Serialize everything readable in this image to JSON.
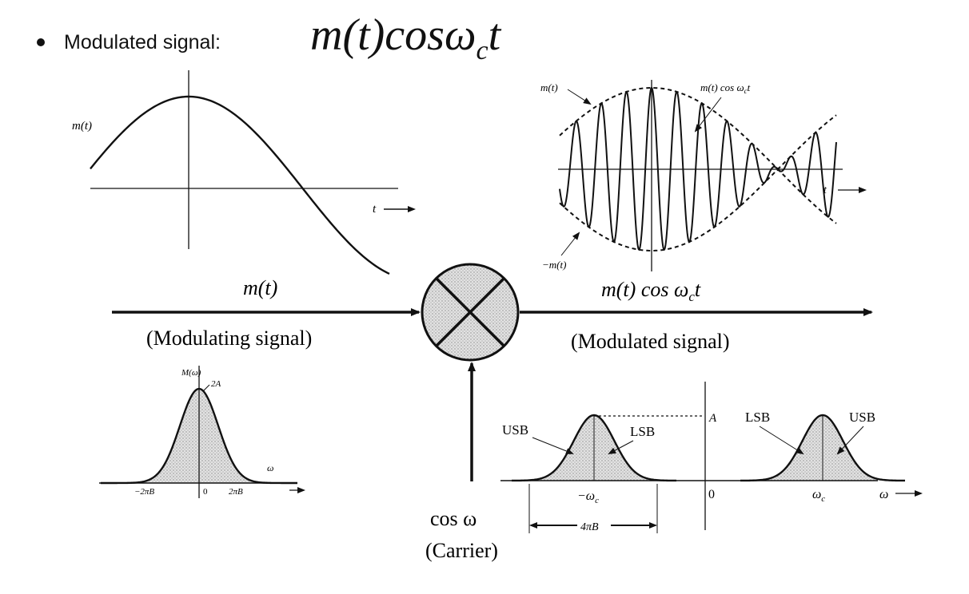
{
  "bullet": {
    "label": "Modulated signal:",
    "formula_main": "m(t)cos",
    "formula_omega": "ω",
    "formula_sub": "c",
    "formula_t": "t"
  },
  "top_left": {
    "ylabel": "m(t)",
    "xlabel": "t"
  },
  "top_right": {
    "label_pos": "m(t)",
    "label_mod": "m(t) cos ω",
    "label_mod_sub": "c",
    "label_mod_t": "t",
    "label_neg": "−m(t)",
    "xlabel": "t"
  },
  "block": {
    "input_label": "m(t)",
    "input_caption": "(Modulating signal)",
    "output_label_main": "m(t) cos ω",
    "output_label_sub": "c",
    "output_label_t": "t",
    "output_caption": "(Modulated signal)",
    "carrier_label": "cos ω",
    "carrier_caption": "(Carrier)"
  },
  "spectrum_left": {
    "ylabel": "M(ω)",
    "peak_label": "2A",
    "xlabel": "ω",
    "ticks": [
      "−2πB",
      "0",
      "2πB"
    ]
  },
  "spectrum_right": {
    "usb_left": "USB",
    "lsb_left": "LSB",
    "lsb_right": "LSB",
    "usb_right": "USB",
    "peak_label": "A",
    "neg_center": "−ω",
    "neg_center_sub": "c",
    "zero": "0",
    "pos_center": "ω",
    "pos_center_sub": "c",
    "xlabel": "ω",
    "bandwidth": "4πB"
  },
  "colors": {
    "ink": "#111111",
    "fill": "#cfcfcf"
  }
}
